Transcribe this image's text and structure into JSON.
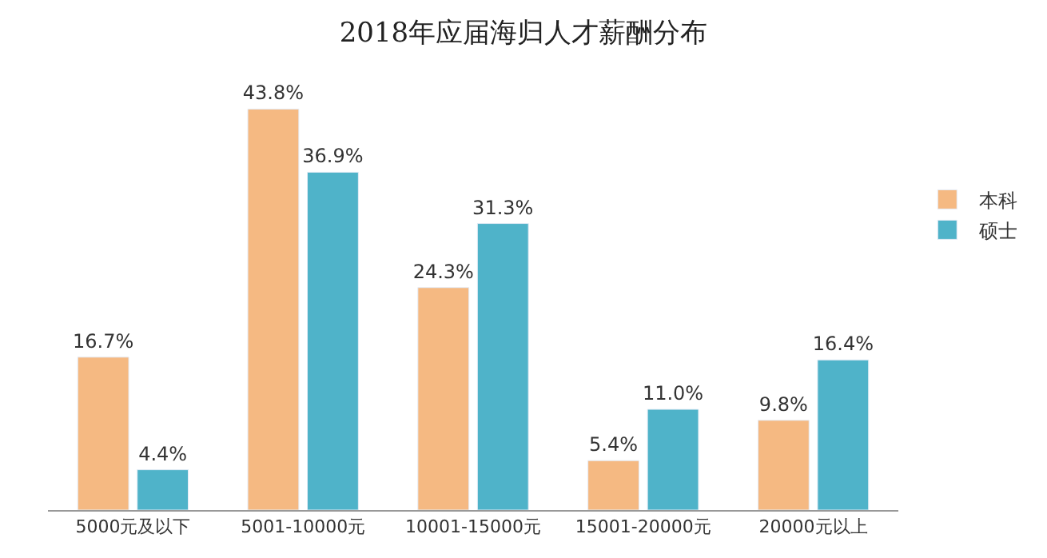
{
  "chart_data": {
    "type": "bar",
    "title": "2018年应届海归人才薪酬分布",
    "categories": [
      "5000元及以下",
      "5001-10000元",
      "10001-15000元",
      "15001-20000元",
      "20000元以上"
    ],
    "series": [
      {
        "name": "本科",
        "color": "#f5b982",
        "values": [
          16.7,
          43.8,
          24.3,
          5.4,
          9.8
        ],
        "value_labels": [
          "16.7%",
          "43.8%",
          "24.3%",
          "5.4%",
          "9.8%"
        ]
      },
      {
        "name": "硕士",
        "color": "#4fb3c9",
        "values": [
          4.4,
          36.9,
          31.3,
          11.0,
          16.4
        ],
        "value_labels": [
          "4.4%",
          "36.9%",
          "31.3%",
          "11.0%",
          "16.4%"
        ]
      }
    ],
    "legend": "right",
    "tick_labels": "x"
  }
}
